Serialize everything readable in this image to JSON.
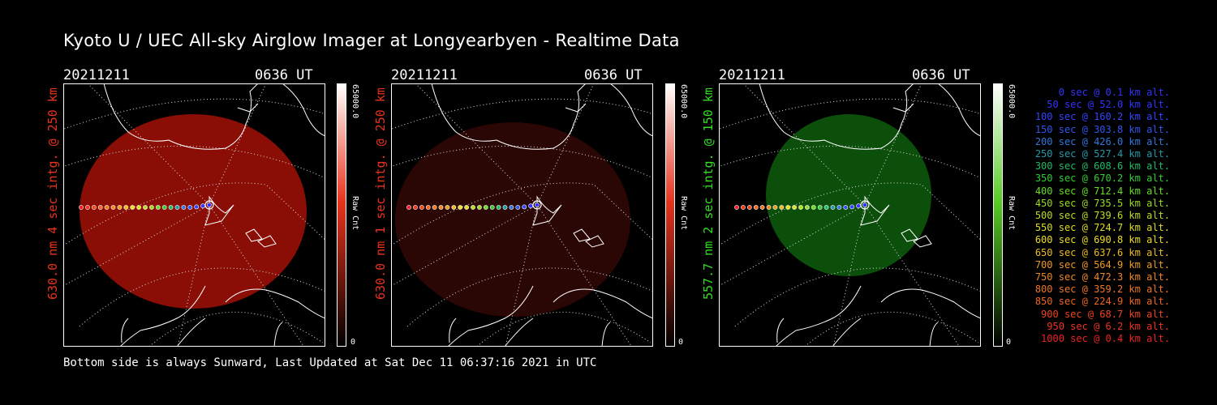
{
  "title": "Kyoto U / UEC All-sky Airglow Imager at Longyearbyen - Realtime Data",
  "footer": "Bottom side is always Sunward, Last Updated at Sat Dec 11 06:37:16 2021 in UTC",
  "colors": {
    "red_panel": "#8a0d06",
    "dim_red_panel": "#2a0604",
    "green_panel": "#0b4f0b"
  },
  "panels": [
    {
      "date": "20211211",
      "time": "0636 UT",
      "side_label": "630.0 nm 4 sec intg. @ 250 km",
      "side_color": "#e8331c",
      "cbar_max": "65000.0",
      "cbar_min": "0",
      "cbar_unit": "Raw Cnt",
      "cbar_color": "#e8331c"
    },
    {
      "date": "20211211",
      "time": "0636 UT",
      "side_label": "630.0 nm 1 sec intg. @ 250 km",
      "side_color": "#e8331c",
      "cbar_max": "65000.0",
      "cbar_min": "0",
      "cbar_unit": "Raw Cnt",
      "cbar_color": "#e8331c"
    },
    {
      "date": "20211211",
      "time": "0636 UT",
      "side_label": "557.7 nm 2 sec intg. @ 150 km",
      "side_color": "#33dd22",
      "cbar_max": "65000.0",
      "cbar_min": "0",
      "cbar_unit": "Raw Cnt",
      "cbar_color": "#55cc22"
    }
  ],
  "chart_data": {
    "type": "scatter",
    "title": "Kyoto U / UEC All-sky Airglow Imager at Longyearbyen - Realtime Data",
    "series": [
      {
        "name": "trajectory",
        "x": [
          0,
          50,
          100,
          150,
          200,
          250,
          300,
          350,
          400,
          450,
          500,
          550,
          600,
          650,
          700,
          750,
          800,
          850,
          900,
          950,
          1000
        ],
        "y": [
          0.1,
          52.0,
          160.2,
          303.8,
          426.0,
          527.4,
          608.6,
          670.2,
          712.4,
          735.5,
          739.6,
          724.7,
          690.8,
          637.6,
          564.9,
          472.3,
          359.2,
          224.9,
          68.7,
          6.2,
          0.4
        ],
        "x_unit": "sec",
        "y_unit": "km alt."
      }
    ]
  },
  "legend": [
    {
      "text": "0 sec @   0.1 km alt.",
      "color": "#3333ff"
    },
    {
      "text": "50 sec @  52.0 km alt.",
      "color": "#3333ff"
    },
    {
      "text": "100 sec @ 160.2 km alt.",
      "color": "#3344ff"
    },
    {
      "text": "150 sec @ 303.8 km alt.",
      "color": "#3355ee"
    },
    {
      "text": "200 sec @ 426.0 km alt.",
      "color": "#3377dd"
    },
    {
      "text": "250 sec @ 527.4 km alt.",
      "color": "#2299aa"
    },
    {
      "text": "300 sec @ 608.6 km alt.",
      "color": "#22bb66"
    },
    {
      "text": "350 sec @ 670.2 km alt.",
      "color": "#33cc33"
    },
    {
      "text": "400 sec @ 712.4 km alt.",
      "color": "#66dd22"
    },
    {
      "text": "450 sec @ 735.5 km alt.",
      "color": "#99dd22"
    },
    {
      "text": "500 sec @ 739.6 km alt.",
      "color": "#bbdd22"
    },
    {
      "text": "550 sec @ 724.7 km alt.",
      "color": "#dddd22"
    },
    {
      "text": "600 sec @ 690.8 km alt.",
      "color": "#eedd22"
    },
    {
      "text": "650 sec @ 637.6 km alt.",
      "color": "#eebb22"
    },
    {
      "text": "700 sec @ 564.9 km alt.",
      "color": "#ee9922"
    },
    {
      "text": "750 sec @ 472.3 km alt.",
      "color": "#ee8822"
    },
    {
      "text": "800 sec @ 359.2 km alt.",
      "color": "#ee7722"
    },
    {
      "text": "850 sec @ 224.9 km alt.",
      "color": "#ee6622"
    },
    {
      "text": "900 sec @  68.7 km alt.",
      "color": "#ee4422"
    },
    {
      "text": "950 sec @   6.2 km alt.",
      "color": "#ee3322"
    },
    {
      "text": "1000 sec @   0.4 km alt.",
      "color": "#ee2222"
    }
  ]
}
